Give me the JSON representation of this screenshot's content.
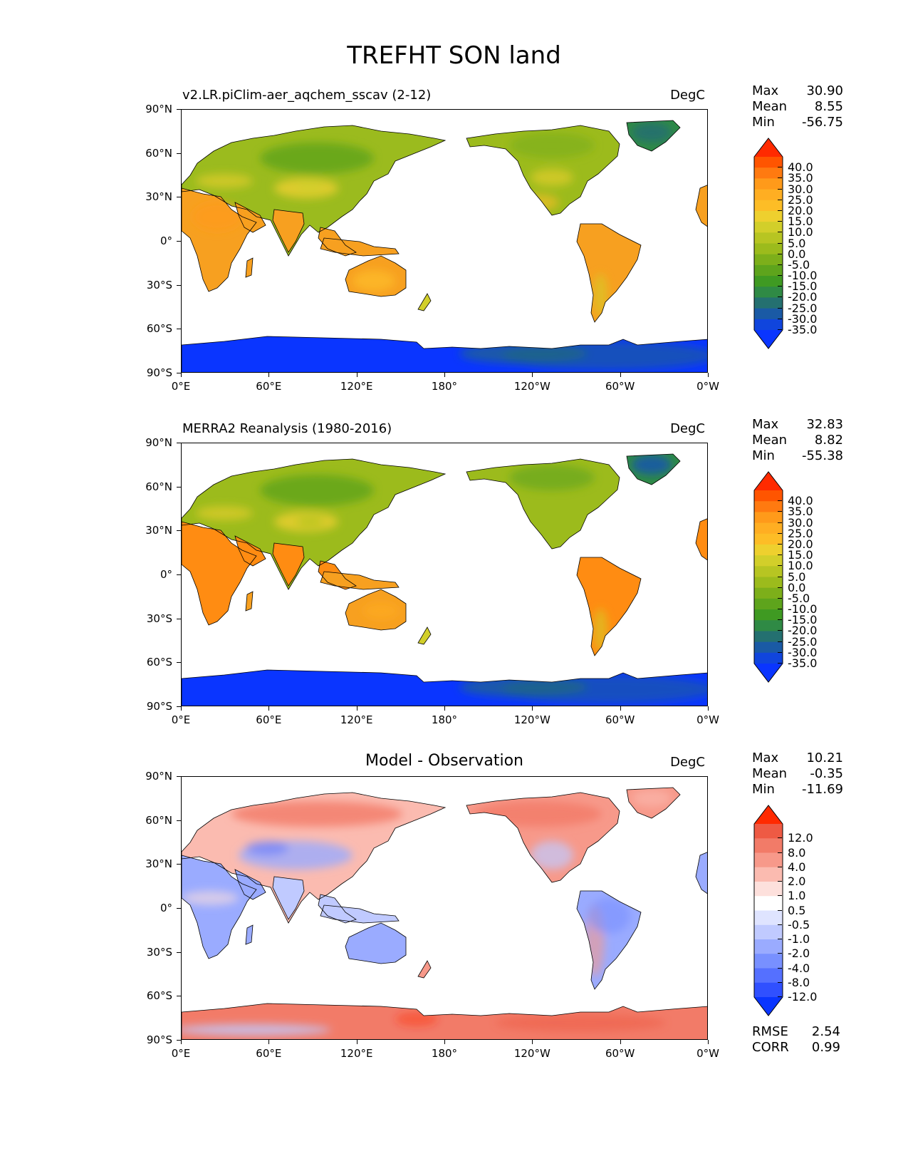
{
  "figure_title": "TREFHT SON land",
  "axes": {
    "y_ticks": [
      "90°N",
      "60°N",
      "30°N",
      "0°",
      "30°S",
      "60°S",
      "90°S"
    ],
    "x_ticks": [
      "0°E",
      "60°E",
      "120°E",
      "180°",
      "120°W",
      "60°W",
      "0°W"
    ]
  },
  "panels": [
    {
      "id": "model",
      "title": "v2.LR.piClim-aer_aqchem_sscav (2-12)",
      "units": "DegC",
      "stats": [
        {
          "label": "Max",
          "value": "30.90"
        },
        {
          "label": "Mean",
          "value": "8.55"
        },
        {
          "label": "Min",
          "value": "-56.75"
        }
      ],
      "colorbar": {
        "labels": [
          "40.0",
          "35.0",
          "30.0",
          "25.0",
          "20.0",
          "15.0",
          "10.0",
          "5.0",
          "0.0",
          "-5.0",
          "-10.0",
          "-15.0",
          "-20.0",
          "-25.0",
          "-30.0",
          "-35.0"
        ],
        "colors": [
          "#ff2a00",
          "#ff5500",
          "#ff7a10",
          "#ff9a1a",
          "#ffae22",
          "#fdbd26",
          "#eed02e",
          "#d2cf2a",
          "#b7c522",
          "#9cbb1c",
          "#7daf1a",
          "#5ea41c",
          "#3f9a22",
          "#2f8a45",
          "#247070",
          "#1a5aa5",
          "#1045dd",
          "#0a35ff"
        ]
      }
    },
    {
      "id": "obs",
      "title": "MERRA2 Reanalysis (1980-2016)",
      "units": "DegC",
      "stats": [
        {
          "label": "Max",
          "value": "32.83"
        },
        {
          "label": "Mean",
          "value": "8.82"
        },
        {
          "label": "Min",
          "value": "-55.38"
        }
      ],
      "colorbar": {
        "labels": [
          "40.0",
          "35.0",
          "30.0",
          "25.0",
          "20.0",
          "15.0",
          "10.0",
          "5.0",
          "0.0",
          "-5.0",
          "-10.0",
          "-15.0",
          "-20.0",
          "-25.0",
          "-30.0",
          "-35.0"
        ],
        "colors": [
          "#ff2a00",
          "#ff5500",
          "#ff7a10",
          "#ff9a1a",
          "#ffae22",
          "#fdbd26",
          "#eed02e",
          "#d2cf2a",
          "#b7c522",
          "#9cbb1c",
          "#7daf1a",
          "#5ea41c",
          "#3f9a22",
          "#2f8a45",
          "#247070",
          "#1a5aa5",
          "#1045dd",
          "#0a35ff"
        ]
      }
    },
    {
      "id": "diff",
      "title": "Model - Observation",
      "units": "DegC",
      "stats": [
        {
          "label": "Max",
          "value": "10.21"
        },
        {
          "label": "Mean",
          "value": "-0.35"
        },
        {
          "label": "Min",
          "value": "-11.69"
        }
      ],
      "colorbar": {
        "labels": [
          "12.0",
          "8.0",
          "4.0",
          "2.0",
          "1.0",
          "0.5",
          "-0.5",
          "-1.0",
          "-2.0",
          "-4.0",
          "-8.0",
          "-12.0"
        ],
        "colors": [
          "#ff2a00",
          "#ee5a44",
          "#f27b68",
          "#f7998a",
          "#fbbbb0",
          "#fde0dc",
          "#ffffff",
          "#dfe4ff",
          "#c0caff",
          "#9aabff",
          "#7890ff",
          "#5570ff",
          "#3050ff",
          "#0a35ff"
        ]
      },
      "metrics": [
        {
          "label": "RMSE",
          "value": "2.54"
        },
        {
          "label": "CORR",
          "value": "0.99"
        }
      ]
    }
  ]
}
